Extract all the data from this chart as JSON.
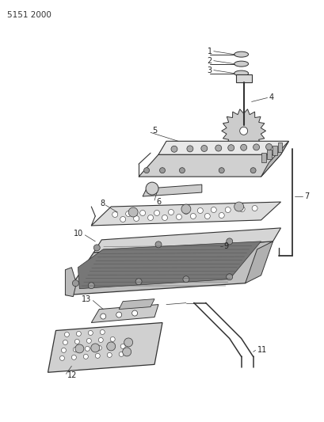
{
  "background_color": "#ffffff",
  "page_label": "5151 2000",
  "line_color": "#333333",
  "label_color": "#222222",
  "label_fontsize": 7,
  "fig_width": 4.1,
  "fig_height": 5.33,
  "dpi": 100
}
